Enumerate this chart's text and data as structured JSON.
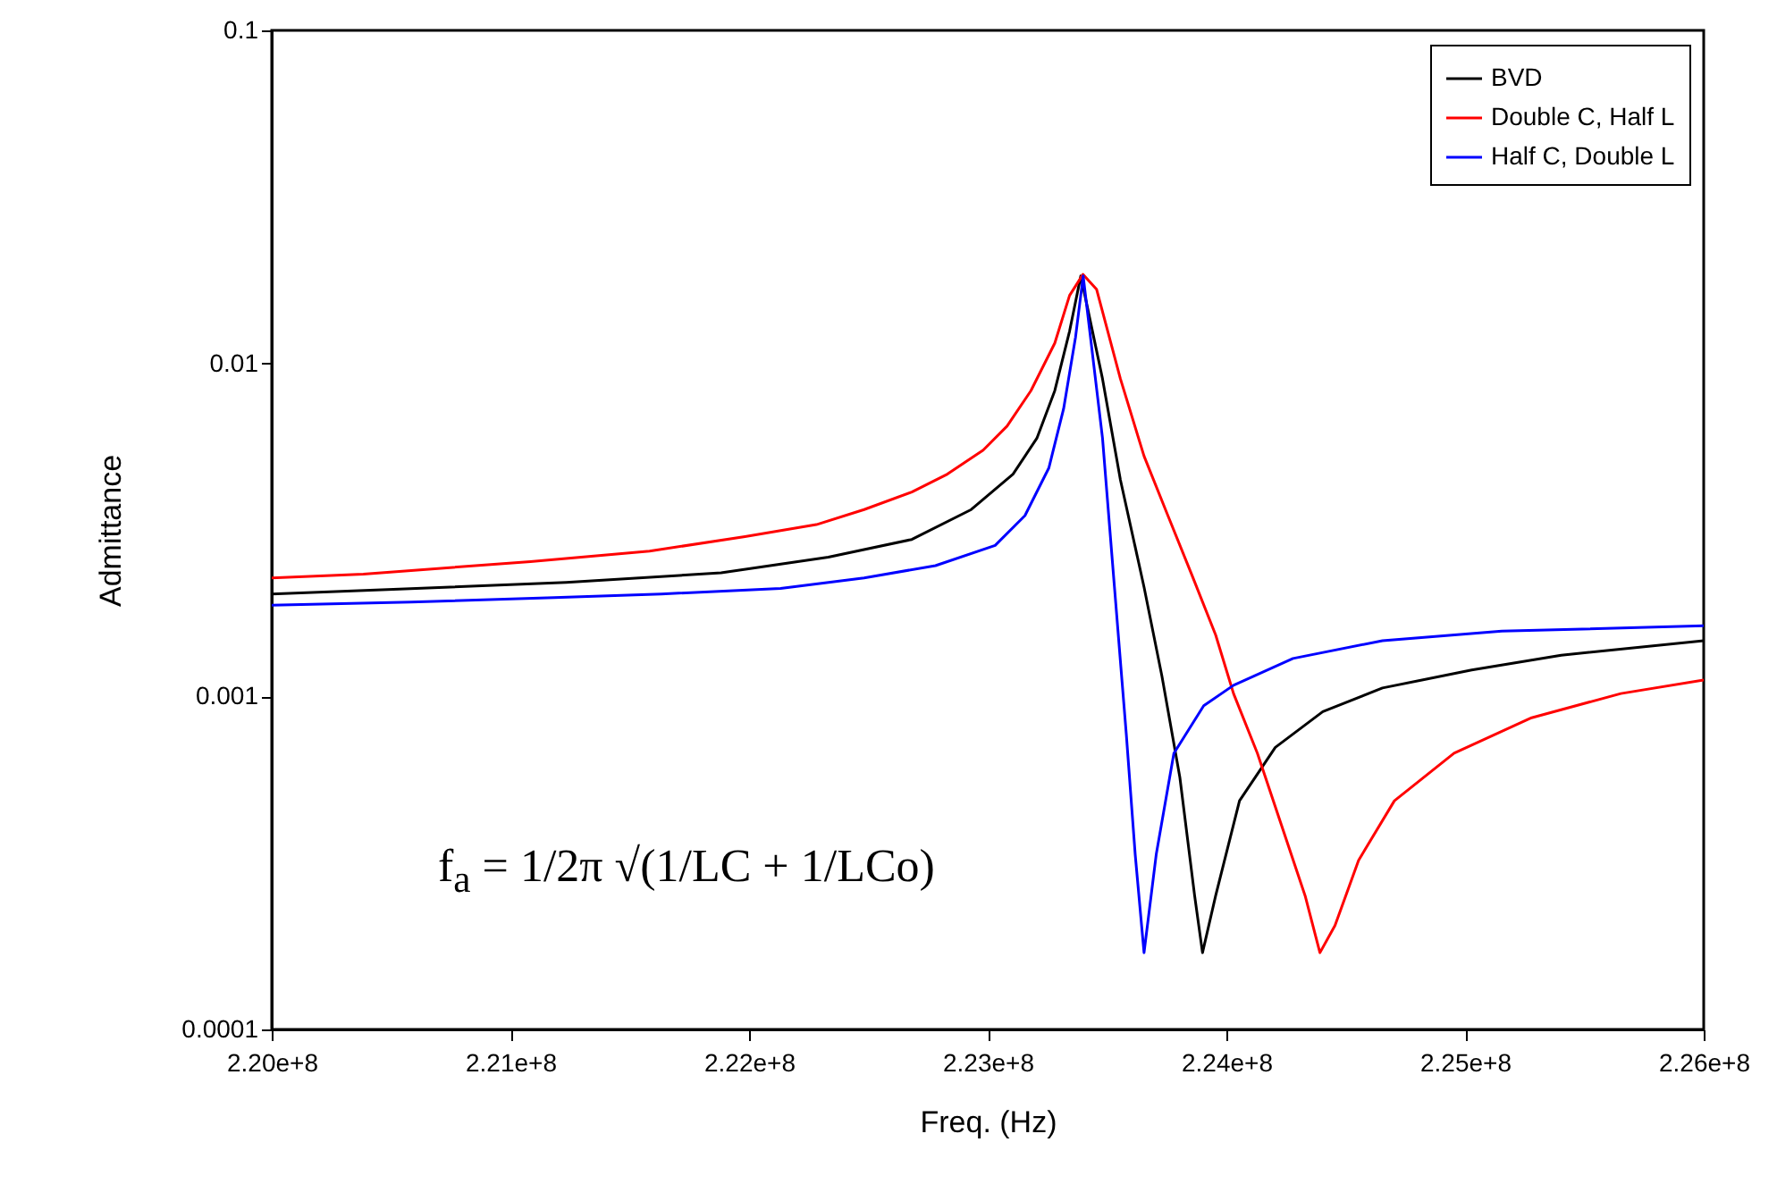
{
  "chart_data": {
    "type": "line",
    "xlabel": "Freq. (Hz)",
    "ylabel": "Admittance",
    "log": "y",
    "grid": false,
    "legend": "top right",
    "line_style": "solid",
    "xlim": [
      220000000,
      226000000
    ],
    "xticks": [
      {
        "value": 220000000,
        "label": "2.20e+8"
      },
      {
        "value": 221000000,
        "label": "2.21e+8"
      },
      {
        "value": 222000000,
        "label": "2.22e+8"
      },
      {
        "value": 223000000,
        "label": "2.23e+8"
      },
      {
        "value": 224000000,
        "label": "2.24e+8"
      },
      {
        "value": 225000000,
        "label": "2.25e+8"
      },
      {
        "value": 226000000,
        "label": "2.26e+8"
      }
    ],
    "ylim": [
      0.0001,
      0.1
    ],
    "yticks": [
      0.0001,
      0.001,
      0.01,
      0.1
    ],
    "annotations": [
      "f$_{a}$ = 1/2π √(1/LC + 1/LCo)"
    ],
    "series": [
      {
        "name": "BVD",
        "color": "#000000",
        "x": [
          220000000.0,
          220534000.0,
          221234000.0,
          221883000.0,
          222332000.0,
          222682000.0,
          222931000.0,
          223106000.0,
          223206000.0,
          223281000.0,
          223343000.0,
          223390000.0,
          223481000.0,
          223556000.0,
          223655000.0,
          223730000.0,
          223805000.0,
          223867000.0,
          223900000.0,
          223955000.0,
          224055000.0,
          224205000.0,
          224404000.0,
          224654000.0,
          225028000.0,
          225403000.0,
          226000000.0
        ],
        "values": [
          0.00203,
          0.0021,
          0.0022,
          0.00235,
          0.00262,
          0.00296,
          0.00364,
          0.00465,
          0.00596,
          0.00828,
          0.0125,
          0.0183,
          0.00899,
          0.00447,
          0.00213,
          0.00115,
          0.000572,
          0.000252,
          0.00017,
          0.000252,
          0.000486,
          0.000703,
          0.0009,
          0.00106,
          0.0012,
          0.00133,
          0.00147
        ]
      },
      {
        "name": "Double C, Half L",
        "color": "#ff0000",
        "x": [
          220000000.0,
          220384000.0,
          221084000.0,
          221583000.0,
          221983000.0,
          222282000.0,
          222482000.0,
          222682000.0,
          222831000.0,
          222981000.0,
          223081000.0,
          223181000.0,
          223281000.0,
          223343000.0,
          223399000.0,
          223456000.0,
          223556000.0,
          223655000.0,
          223755000.0,
          223855000.0,
          223955000.0,
          224030000.0,
          224130000.0,
          224230000.0,
          224330000.0,
          224392000.0,
          224455000.0,
          224554000.0,
          224704000.0,
          224954000.0,
          225279000.0,
          225653000.0,
          226000000.0
        ],
        "values": [
          0.00227,
          0.00233,
          0.00254,
          0.00273,
          0.00302,
          0.00328,
          0.00364,
          0.00411,
          0.00465,
          0.00549,
          0.00648,
          0.00828,
          0.0115,
          0.016,
          0.0185,
          0.0167,
          0.00899,
          0.00527,
          0.00349,
          0.00232,
          0.00153,
          0.00102,
          0.000675,
          0.000412,
          0.000252,
          0.00017,
          0.000205,
          0.000322,
          0.000486,
          0.000675,
          0.000863,
          0.00102,
          0.00112
        ]
      },
      {
        "name": "Half C, Double L",
        "color": "#0000ff",
        "x": [
          220000000.0,
          220584000.0,
          221184000.0,
          221633000.0,
          222132000.0,
          222482000.0,
          222781000.0,
          223031000.0,
          223156000.0,
          223256000.0,
          223318000.0,
          223368000.0,
          223400000.0,
          223481000.0,
          223531000.0,
          223581000.0,
          223618000.0,
          223655000.0,
          223706000.0,
          223780000.0,
          223905000.0,
          224030000.0,
          224279000.0,
          224654000.0,
          225154000.0,
          226000000.0
        ],
        "values": [
          0.00188,
          0.00192,
          0.00198,
          0.00203,
          0.00211,
          0.00227,
          0.00247,
          0.00284,
          0.00349,
          0.00485,
          0.00731,
          0.012,
          0.0183,
          0.00596,
          0.00213,
          0.000764,
          0.000335,
          0.00017,
          0.000335,
          0.000675,
          0.000938,
          0.00108,
          0.0013,
          0.00147,
          0.00157,
          0.00163
        ]
      }
    ]
  }
}
